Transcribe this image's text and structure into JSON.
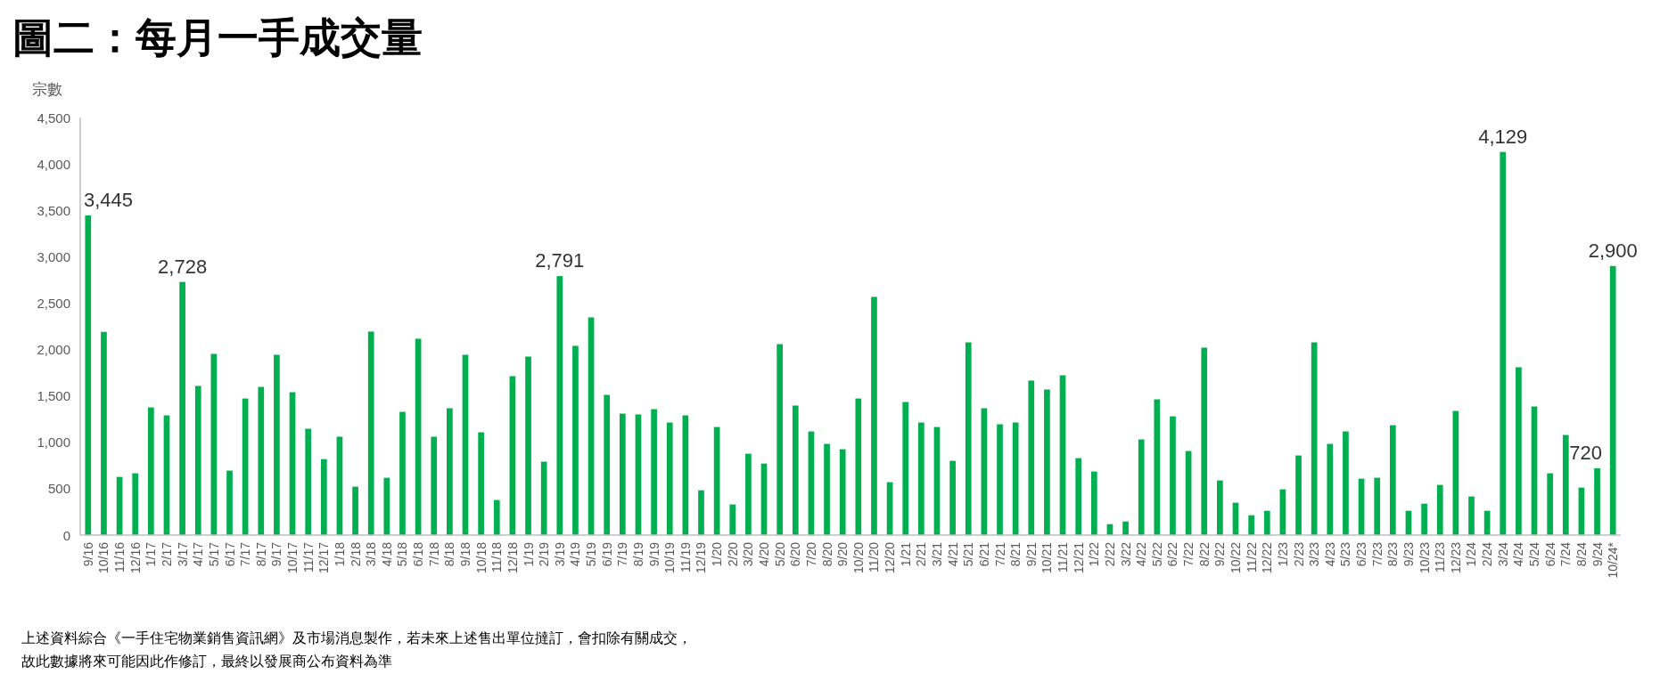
{
  "chart_data": {
    "type": "bar",
    "title": "圖二：每月一手成交量",
    "ylabel": "宗數",
    "annotations": [
      "上述資料綜合《一手住宅物業銷售資訊網》及市場消息製作，若未來上述售出單位撻訂，會扣除有關成交，",
      "故此數據將來可能因此作修訂，最終以發展商公布資料為準"
    ],
    "categories": [
      "9/16",
      "10/16",
      "11/16",
      "12/16",
      "1/17",
      "2/17",
      "3/17",
      "4/17",
      "5/17",
      "6/17",
      "7/17",
      "8/17",
      "9/17",
      "10/17",
      "11/17",
      "12/17",
      "1/18",
      "2/18",
      "3/18",
      "4/18",
      "5/18",
      "6/18",
      "7/18",
      "8/18",
      "9/18",
      "10/18",
      "11/18",
      "12/18",
      "1/19",
      "2/19",
      "3/19",
      "4/19",
      "5/19",
      "6/19",
      "7/19",
      "8/19",
      "9/19",
      "10/19",
      "11/19",
      "12/19",
      "1/20",
      "2/20",
      "3/20",
      "4/20",
      "5/20",
      "6/20",
      "7/20",
      "8/20",
      "9/20",
      "10/20",
      "11/20",
      "12/20",
      "1/21",
      "2/21",
      "3/21",
      "4/21",
      "5/21",
      "6/21",
      "7/21",
      "8/21",
      "9/21",
      "10/21",
      "11/21",
      "12/21",
      "1/22",
      "2/22",
      "3/22",
      "4/22",
      "5/22",
      "6/22",
      "7/22",
      "8/22",
      "9/22",
      "10/22",
      "11/22",
      "12/22",
      "1/23",
      "2/23",
      "3/23",
      "4/23",
      "5/23",
      "6/23",
      "7/23",
      "8/23",
      "9/23",
      "10/23",
      "11/23",
      "12/23",
      "1/24",
      "2/24",
      "3/24",
      "4/24",
      "5/24",
      "6/24",
      "7/24",
      "8/24",
      "9/24",
      "10/24*"
    ],
    "values": [
      3445,
      2190,
      627,
      666,
      1376,
      1290,
      2728,
      1607,
      1953,
      695,
      1472,
      1597,
      1943,
      1540,
      1146,
      819,
      1060,
      522,
      2193,
      618,
      1328,
      2116,
      1060,
      1367,
      1943,
      1108,
      378,
      1713,
      1924,
      791,
      2791,
      2039,
      2346,
      1511,
      1309,
      1300,
      1357,
      1213,
      1290,
      483,
      1165,
      330,
      877,
      771,
      2058,
      1396,
      1117,
      983,
      925,
      1472,
      2567,
      570,
      1434,
      1213,
      1165,
      800,
      2077,
      1367,
      1194,
      1213,
      1665,
      1569,
      1722,
      829,
      685,
      118,
      147,
      1031,
      1463,
      1280,
      906,
      2020,
      589,
      349,
      214,
      262,
      493,
      858,
      2077,
      983,
      1117,
      608,
      618,
      1184,
      262,
      339,
      541,
      1338,
      416,
      262,
      4129,
      1809,
      1386,
      666,
      1079,
      512,
      720,
      2900
    ],
    "value_labels": [
      "3,445",
      null,
      null,
      null,
      null,
      null,
      "2,728",
      null,
      null,
      null,
      null,
      null,
      null,
      null,
      null,
      null,
      null,
      null,
      null,
      null,
      null,
      null,
      null,
      null,
      null,
      null,
      null,
      null,
      null,
      null,
      "2,791",
      null,
      null,
      null,
      null,
      null,
      null,
      null,
      null,
      null,
      null,
      null,
      null,
      null,
      null,
      null,
      null,
      null,
      null,
      null,
      null,
      null,
      null,
      null,
      null,
      null,
      null,
      null,
      null,
      null,
      null,
      null,
      null,
      null,
      null,
      null,
      null,
      null,
      null,
      null,
      null,
      null,
      null,
      null,
      null,
      null,
      null,
      null,
      null,
      null,
      null,
      null,
      null,
      null,
      null,
      null,
      null,
      null,
      null,
      null,
      "4,129",
      null,
      null,
      null,
      null,
      null,
      "720",
      "2,900"
    ],
    "color": "#00b050",
    "ylim": [
      0,
      4500
    ],
    "yticks": [
      0,
      500,
      {
        "value": 1000,
        "label": "1,000"
      },
      {
        "value": 1500,
        "label": "1,500"
      },
      {
        "value": 2000,
        "label": "2,000"
      },
      {
        "value": 2500,
        "label": "2,500"
      },
      {
        "value": 3000,
        "label": "3,000"
      },
      {
        "value": 3500,
        "label": "3,500"
      },
      {
        "value": 4000,
        "label": "4,000"
      },
      {
        "value": 4500,
        "label": "4,500"
      }
    ]
  }
}
